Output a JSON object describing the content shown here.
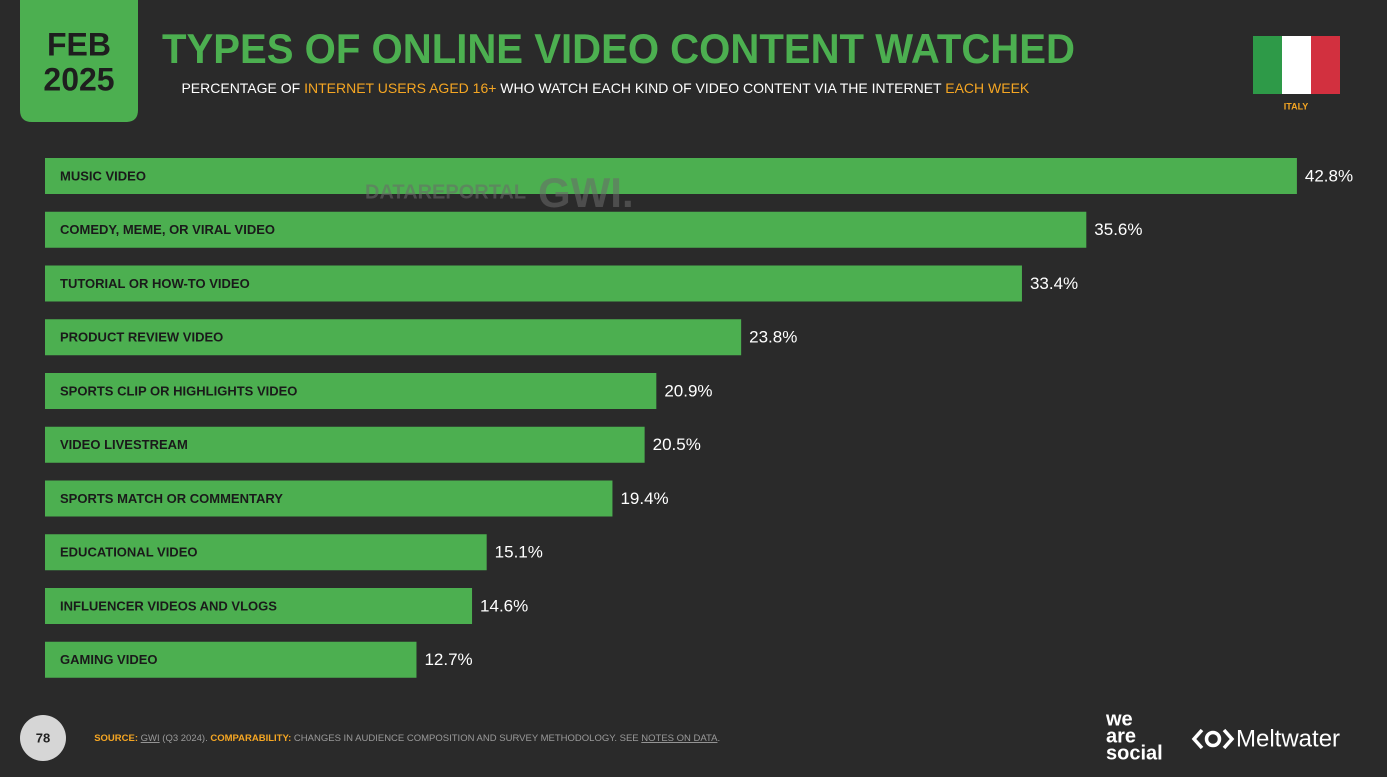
{
  "header": {
    "month": "FEB",
    "year": "2025",
    "title": "TYPES OF ONLINE VIDEO CONTENT WATCHED",
    "subtitle": [
      "PERCENTAGE OF ",
      "INTERNET USERS AGED 16+",
      " WHO WATCH EACH KIND OF VIDEO CONTENT VIA THE INTERNET ",
      "EACH WEEK"
    ],
    "country": "ITALY"
  },
  "chart_data": {
    "type": "bar",
    "categories": [
      "MUSIC VIDEO",
      "COMEDY, MEME, OR VIRAL VIDEO",
      "TUTORIAL OR HOW-TO VIDEO",
      "PRODUCT REVIEW VIDEO",
      "SPORTS CLIP OR HIGHLIGHTS VIDEO",
      "VIDEO LIVESTREAM",
      "SPORTS MATCH OR COMMENTARY",
      "EDUCATIONAL VIDEO",
      "INFLUENCER VIDEOS AND VLOGS",
      "GAMING VIDEO"
    ],
    "values": [
      42.8,
      35.6,
      33.4,
      23.8,
      20.9,
      20.5,
      19.4,
      15.1,
      14.6,
      12.7
    ],
    "value_labels": [
      "42.8%",
      "35.6%",
      "33.4%",
      "23.8%",
      "20.9%",
      "20.5%",
      "19.4%",
      "15.1%",
      "14.6%",
      "12.7%"
    ],
    "color": "#4caf50"
  },
  "watermarks": [
    "DATAREPORTAL",
    "GWI."
  ],
  "footer": {
    "page": "78",
    "source": [
      "SOURCE: ",
      "GWI",
      " (Q3 2024). ",
      "COMPARABILITY: ",
      "CHANGES IN AUDIENCE COMPOSITION AND SURVEY METHODOLOGY. SEE ",
      "NOTES ON DATA",
      "."
    ],
    "logos": [
      "we",
      "are",
      "social",
      "Meltwater"
    ]
  }
}
